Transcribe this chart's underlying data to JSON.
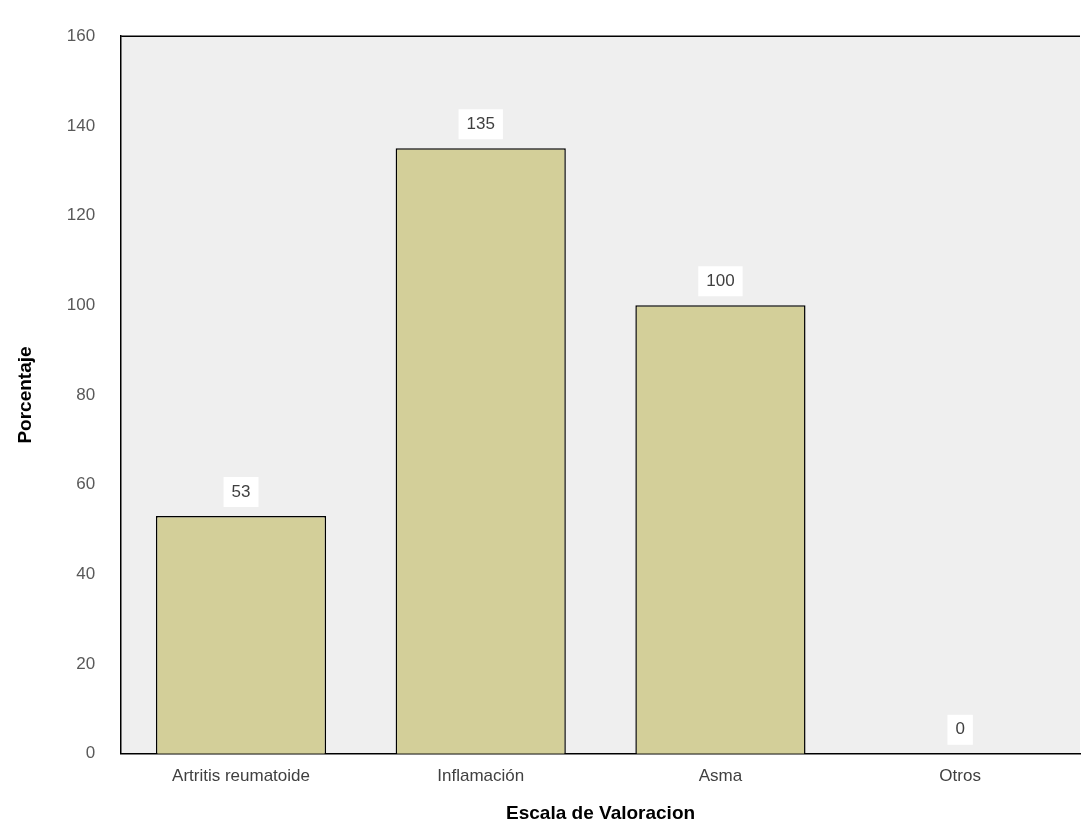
{
  "chart_data": {
    "type": "bar",
    "xlabel": "Escala de Valoracion",
    "ylabel": "Porcentaje",
    "categories": [
      "Artritis reumatoide",
      "Inflamación",
      "Asma",
      "Otros"
    ],
    "values": [
      53,
      135,
      100,
      0
    ],
    "color": "#d3cf99",
    "ylim": [
      0,
      160
    ],
    "yticks": [
      0,
      20,
      40,
      60,
      80,
      100,
      120,
      140,
      160
    ],
    "grid": false,
    "legend": false,
    "data_labels": true
  }
}
